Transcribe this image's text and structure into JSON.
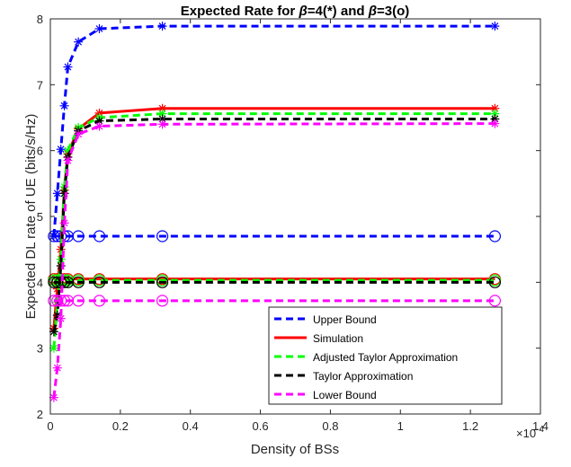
{
  "chart_data": {
    "type": "line",
    "title_prefix": "Expected Rate for ",
    "title_beta": "β",
    "title_mid1": "=4(*) and ",
    "title_mid2": "=3(o)",
    "xlabel": "Density of BSs",
    "ylabel": "Expected DL rate of UE (bits/s/Hz)",
    "x_multiplier_base": "×10",
    "x_multiplier_exp": "-4",
    "xlim": [
      0,
      1.4
    ],
    "ylim": [
      2,
      8
    ],
    "xticks": [
      0,
      0.2,
      0.4,
      0.6,
      0.8,
      1,
      1.2,
      1.4
    ],
    "xtick_labels": [
      "0",
      "0.2",
      "0.4",
      "0.6",
      "0.8",
      "1",
      "1.2",
      "1.4"
    ],
    "yticks": [
      2,
      3,
      4,
      5,
      6,
      7,
      8
    ],
    "ytick_labels": [
      "2",
      "3",
      "4",
      "5",
      "6",
      "7",
      "8"
    ],
    "grid": false,
    "legend_position": "bottom-right",
    "x": [
      0.01,
      0.02,
      0.03,
      0.04,
      0.05,
      0.08,
      0.14,
      0.32,
      1.27
    ],
    "series": [
      {
        "name": "Upper Bound",
        "color": "#0000ff",
        "dash": "dashed",
        "beta4": [
          4.7,
          5.35,
          6.02,
          6.68,
          7.27,
          7.65,
          7.85,
          7.89,
          7.89
        ],
        "beta3": [
          4.7,
          4.7,
          4.7,
          4.7,
          4.7,
          4.7,
          4.7,
          4.7,
          4.7
        ]
      },
      {
        "name": "Simulation",
        "color": "#ff0000",
        "dash": "solid",
        "beta4": [
          3.3,
          3.9,
          4.5,
          5.4,
          5.95,
          6.33,
          6.57,
          6.64,
          6.64
        ],
        "beta3": [
          4.05,
          4.05,
          4.05,
          4.05,
          4.05,
          4.05,
          4.05,
          4.05,
          4.05
        ]
      },
      {
        "name": "Adjusted Taylor Approximation",
        "color": "#00ff00",
        "dash": "dashed",
        "beta4": [
          3.0,
          3.7,
          4.35,
          5.45,
          6.0,
          6.35,
          6.5,
          6.56,
          6.56
        ],
        "beta3": [
          4.03,
          4.03,
          4.03,
          4.03,
          4.03,
          4.03,
          4.03,
          4.03,
          4.03
        ]
      },
      {
        "name": "Taylor Approximation",
        "color": "#000000",
        "dash": "dashed",
        "beta4": [
          3.25,
          3.5,
          4.25,
          5.35,
          5.9,
          6.3,
          6.45,
          6.48,
          6.48
        ],
        "beta3": [
          4.0,
          4.0,
          4.0,
          4.0,
          4.0,
          4.0,
          4.0,
          4.0,
          4.0
        ]
      },
      {
        "name": "Lower Bound",
        "color": "#ff00ff",
        "dash": "dashed",
        "beta4": [
          2.25,
          2.7,
          3.45,
          4.9,
          5.85,
          6.25,
          6.37,
          6.4,
          6.41
        ],
        "beta3": [
          3.72,
          3.72,
          3.72,
          3.72,
          3.72,
          3.72,
          3.72,
          3.72,
          3.72
        ]
      }
    ]
  }
}
